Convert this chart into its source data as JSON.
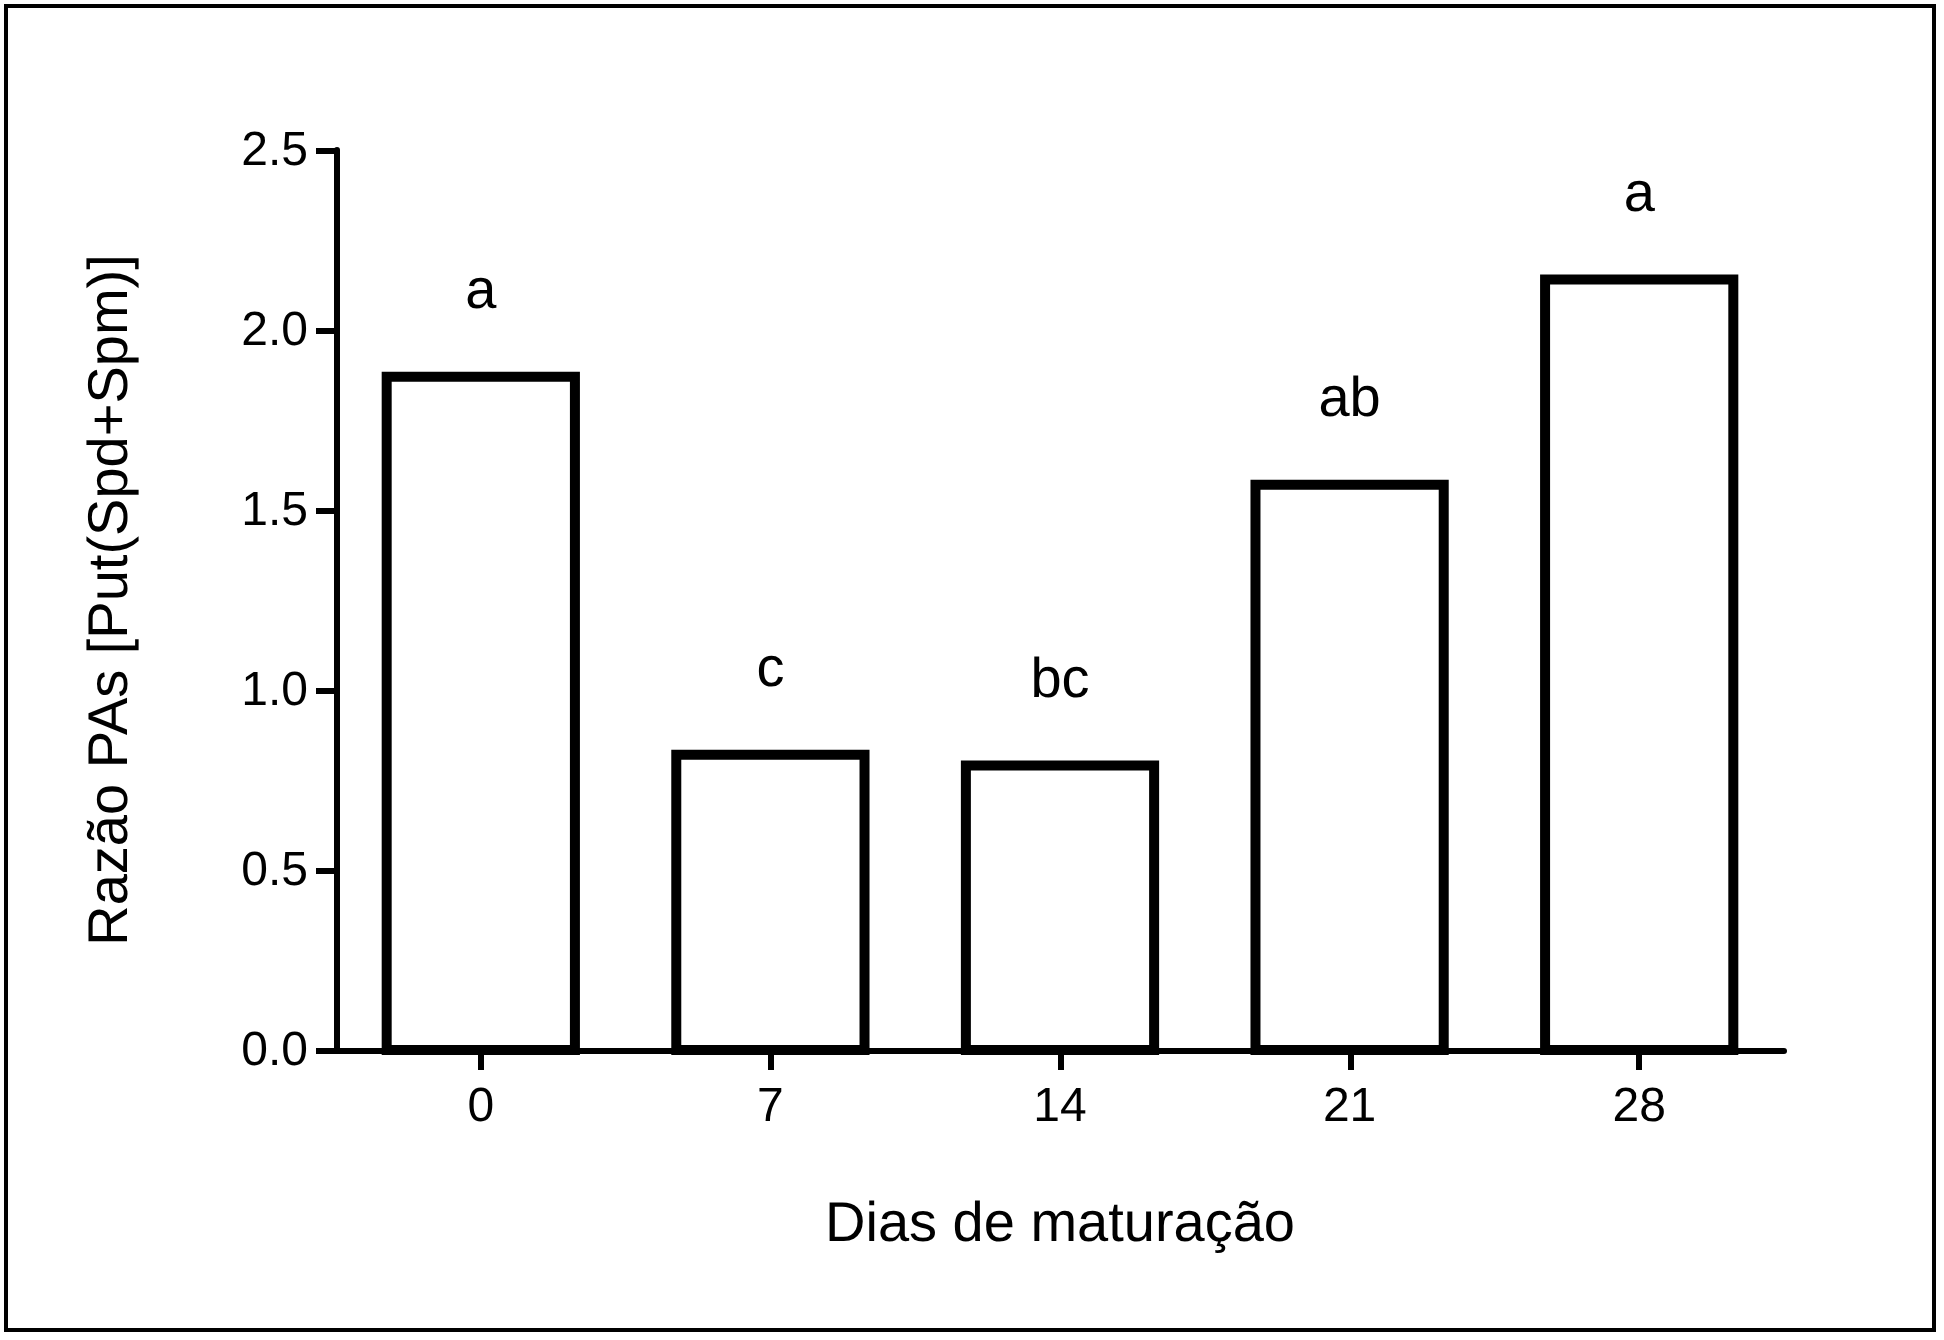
{
  "chart_data": {
    "type": "bar",
    "xlabel": "Dias de maturação",
    "ylabel": "Razão PAs [Put(Spd+Spm)]",
    "categories": [
      "0",
      "7",
      "14",
      "21",
      "28"
    ],
    "values": [
      1.87,
      0.82,
      0.79,
      1.57,
      2.14
    ],
    "color": "#ffffff",
    "ylim": [
      0,
      2.5
    ],
    "yticks": [
      {
        "value": 0,
        "label": "0.0"
      },
      {
        "value": 0.5,
        "label": "0.5"
      },
      {
        "value": 1,
        "label": "1.0"
      },
      {
        "value": 1.5,
        "label": "1.5"
      },
      {
        "value": 2,
        "label": "2.0"
      },
      {
        "value": 2.5,
        "label": "2.5"
      }
    ],
    "grid": false,
    "annotations": [
      "a",
      "c",
      "bc",
      "ab",
      "a"
    ]
  }
}
